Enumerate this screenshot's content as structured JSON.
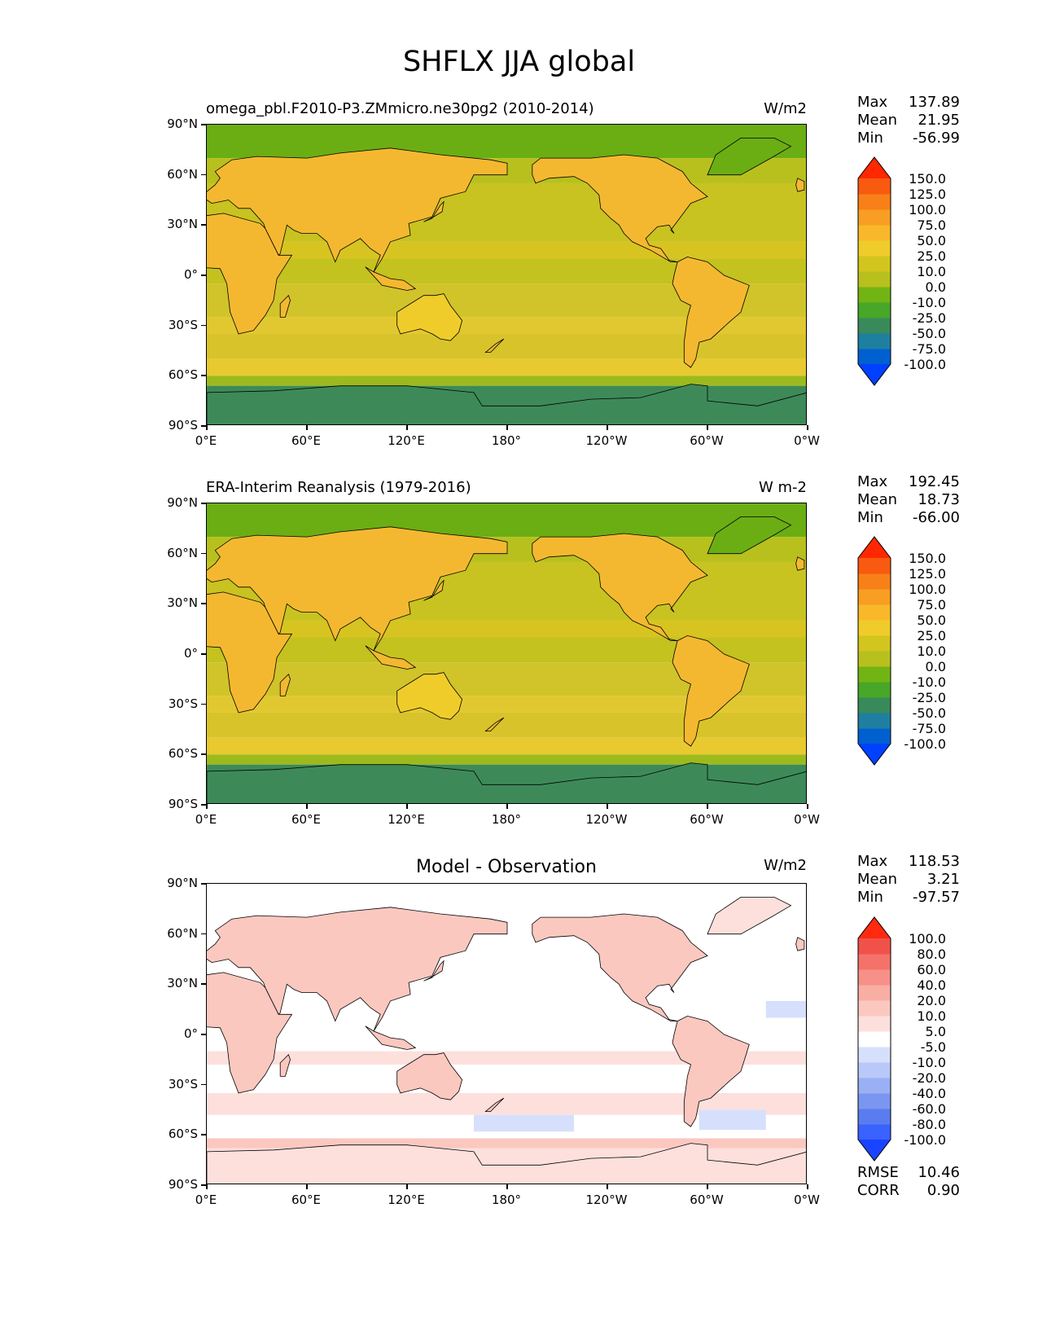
{
  "title": "SHFLX JJA global",
  "lat_ticks": [
    "90°N",
    "60°N",
    "30°N",
    "0°",
    "30°S",
    "60°S",
    "90°S"
  ],
  "lon_ticks": [
    "0°E",
    "60°E",
    "120°E",
    "180°",
    "120°W",
    "60°W",
    "0°W"
  ],
  "panels": [
    {
      "name": "test",
      "title": "omega_pbl.F2010-P3.ZMmicro.ne30pg2 (2010-2014)",
      "units": "W/m2",
      "stats": [
        {
          "label": "Max",
          "value": "137.89"
        },
        {
          "label": "Mean",
          "value": "21.95"
        },
        {
          "label": "Min",
          "value": "-56.99"
        }
      ],
      "colorbar_labels": [
        "150.0",
        "125.0",
        "100.0",
        "75.0",
        "50.0",
        "25.0",
        "10.0",
        "0.0",
        "-10.0",
        "-25.0",
        "-50.0",
        "-75.0",
        "-100.0"
      ],
      "colorbar_colors": [
        "#0040ff",
        "#0060d0",
        "#1f7fa0",
        "#398a5a",
        "#48a628",
        "#72b414",
        "#b8c01e",
        "#d2c51e",
        "#f0cc2a",
        "#f8b82a",
        "#f89e22",
        "#f88018",
        "#f85a10",
        "#ff2800"
      ]
    },
    {
      "name": "reference",
      "title": "ERA-Interim Reanalysis (1979-2016)",
      "units": "W m-2",
      "stats": [
        {
          "label": "Max",
          "value": "192.45"
        },
        {
          "label": "Mean",
          "value": "18.73"
        },
        {
          "label": "Min",
          "value": "-66.00"
        }
      ],
      "colorbar_labels": [
        "150.0",
        "125.0",
        "100.0",
        "75.0",
        "50.0",
        "25.0",
        "10.0",
        "0.0",
        "-10.0",
        "-25.0",
        "-50.0",
        "-75.0",
        "-100.0"
      ],
      "colorbar_colors": [
        "#0040ff",
        "#0060d0",
        "#1f7fa0",
        "#398a5a",
        "#48a628",
        "#72b414",
        "#b8c01e",
        "#d2c51e",
        "#f0cc2a",
        "#f8b82a",
        "#f89e22",
        "#f88018",
        "#f85a10",
        "#ff2800"
      ]
    },
    {
      "name": "diff",
      "title": "Model - Observation",
      "units": "W/m2",
      "stats": [
        {
          "label": "Max",
          "value": "118.53"
        },
        {
          "label": "Mean",
          "value": "3.21"
        },
        {
          "label": "Min",
          "value": "-97.57"
        }
      ],
      "colorbar_labels": [
        "100.0",
        "80.0",
        "60.0",
        "40.0",
        "20.0",
        "10.0",
        "5.0",
        "-5.0",
        "-10.0",
        "-20.0",
        "-40.0",
        "-60.0",
        "-80.0",
        "-100.0"
      ],
      "colorbar_colors": [
        "#1a44ff",
        "#3a62ff",
        "#5a7cf0",
        "#7a96f0",
        "#9ab0f4",
        "#b8c8f8",
        "#d6e0fc",
        "#ffffff",
        "#fde0dc",
        "#fbc8c0",
        "#f9aea4",
        "#f79088",
        "#f4726a",
        "#f0524a",
        "#ff2a10"
      ],
      "extra_stats": [
        {
          "label": "RMSE",
          "value": "10.46"
        },
        {
          "label": "CORR",
          "value": "0.90"
        }
      ]
    }
  ]
}
